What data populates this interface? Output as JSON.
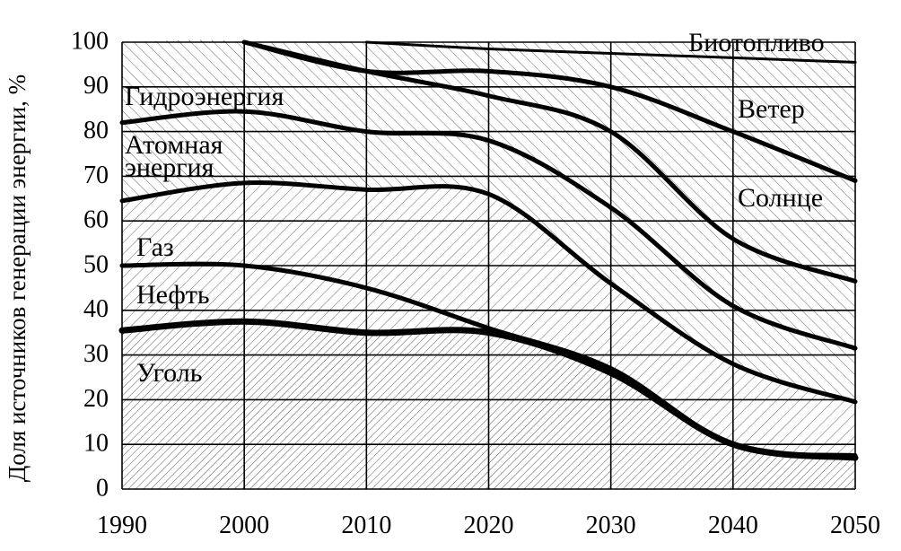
{
  "chart_data": {
    "type": "area",
    "ylabel": "Доля источников генерации энергии, %",
    "xlabel": "",
    "x": [
      1990,
      2000,
      2010,
      2020,
      2030,
      2040,
      2050
    ],
    "x_ticks": [
      "1990",
      "2000",
      "2010",
      "2020",
      "2030",
      "2040",
      "2050"
    ],
    "y_ticks": [
      "0",
      "10",
      "20",
      "30",
      "40",
      "50",
      "60",
      "70",
      "80",
      "90",
      "100"
    ],
    "xlim": [
      1990,
      2050
    ],
    "ylim": [
      0,
      100
    ],
    "grid": true,
    "stacked_boundaries": [
      {
        "name": "Уголь",
        "upper": [
          35.5,
          37.5,
          35,
          35,
          26,
          10,
          7
        ]
      },
      {
        "name": "Нефть",
        "upper": [
          50,
          50,
          45,
          36,
          27,
          10,
          7.5
        ]
      },
      {
        "name": "Газ",
        "upper": [
          64.5,
          68.5,
          67,
          66,
          46,
          28,
          19.5
        ]
      },
      {
        "name": "Атомная энергия",
        "upper": [
          82,
          84.5,
          80,
          78,
          63,
          41,
          31.5
        ]
      },
      {
        "name": "Гидроэнергия",
        "upper": [
          100,
          100,
          93.5,
          88,
          80,
          56,
          46.5
        ]
      },
      {
        "name": "Солнце",
        "upper": [
          100,
          100,
          93.5,
          93.5,
          90,
          80,
          69
        ]
      },
      {
        "name": "Ветер",
        "upper": [
          100,
          100,
          100,
          98.5,
          97.5,
          96.5,
          95.5
        ]
      },
      {
        "name": "Биотопливо",
        "upper": [
          100,
          100,
          100,
          100,
          100,
          100,
          100
        ]
      }
    ],
    "labels": [
      "Биотопливо",
      "Ветер",
      "Солнце",
      "Гидроэнергия",
      "Атомная",
      "энергия",
      "Газ",
      "Нефть",
      "Уголь"
    ]
  }
}
